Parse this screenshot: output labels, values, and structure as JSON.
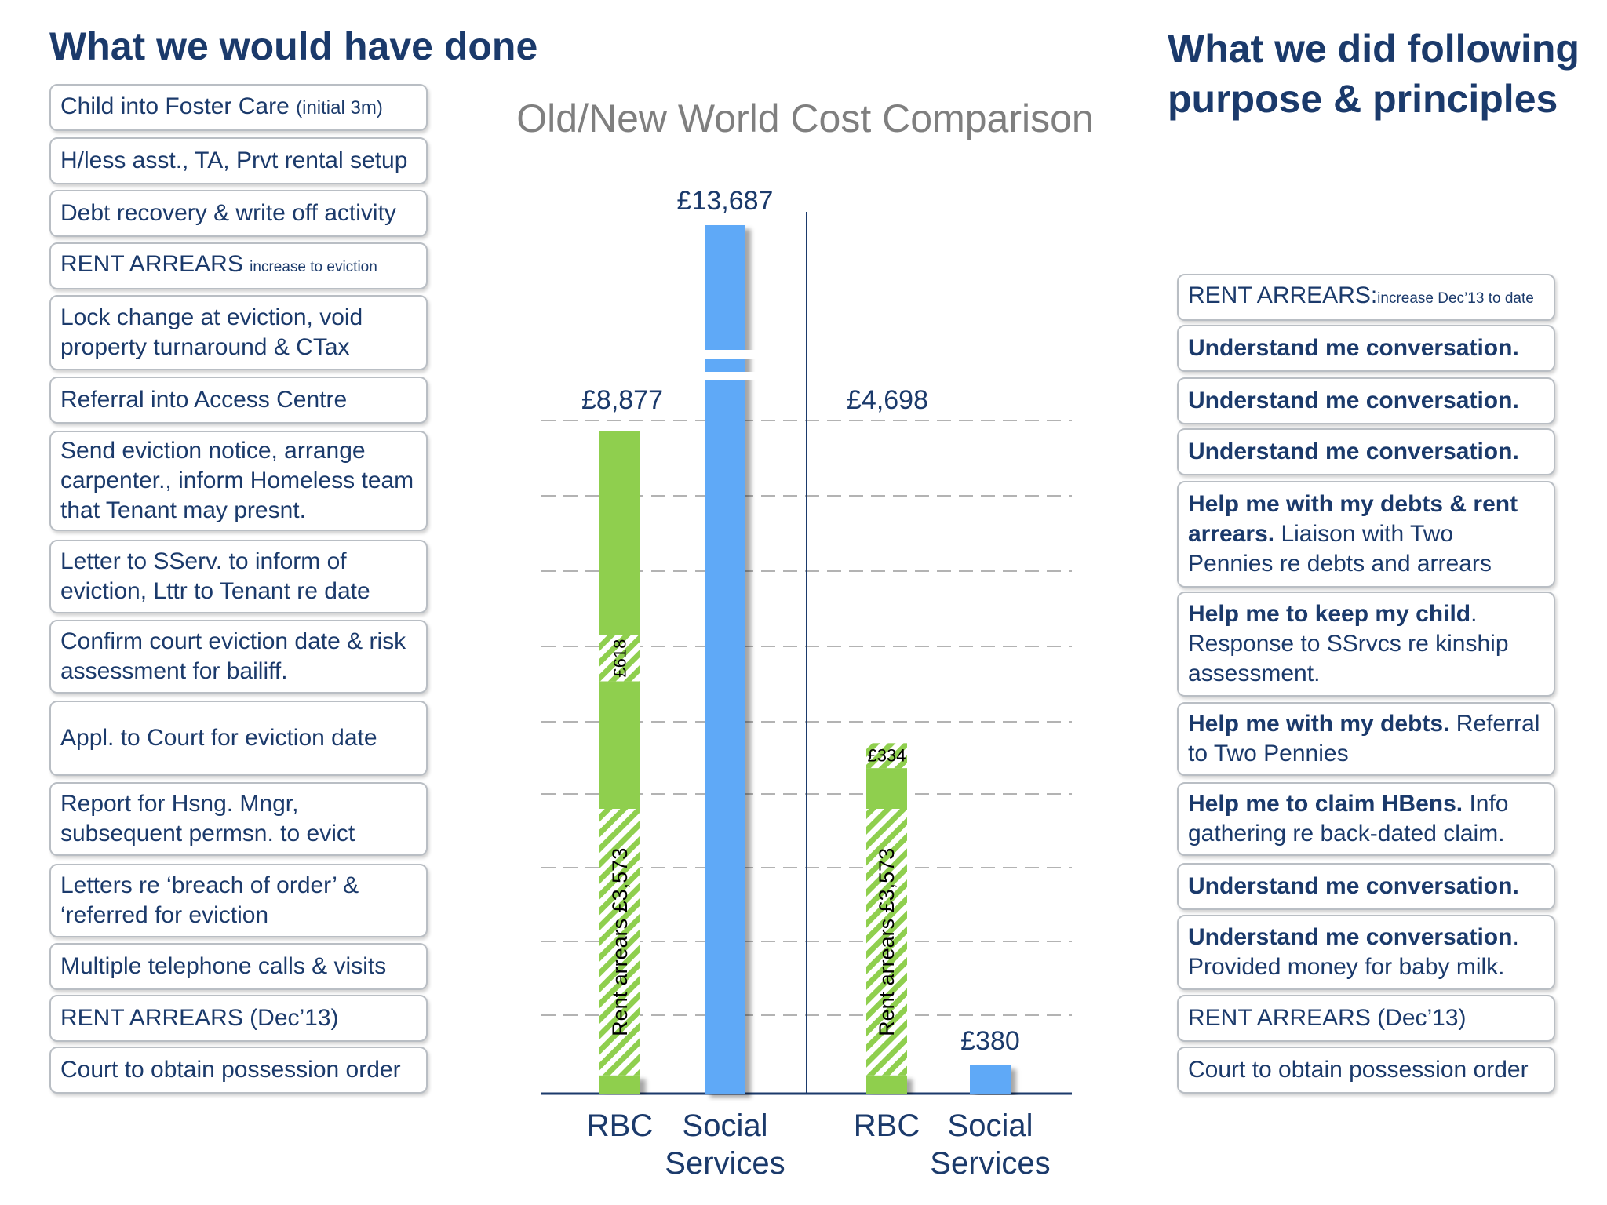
{
  "headings": {
    "left": "What we would have done",
    "right_line1": "What we did following",
    "right_line2": "purpose & principles"
  },
  "left_boxes": [
    {
      "parts": [
        {
          "text": "Child into Foster Care "
        },
        {
          "text": "(initial 3m)",
          "style": "small"
        }
      ]
    },
    {
      "parts": [
        {
          "text": "H/less asst., TA, Prvt rental setup"
        }
      ]
    },
    {
      "parts": [
        {
          "text": "Debt recovery & write off activity"
        }
      ]
    },
    {
      "parts": [
        {
          "text": "RENT ARREARS "
        },
        {
          "text": "increase to eviction",
          "style": "tiny"
        }
      ]
    },
    {
      "parts": [
        {
          "text": "Lock change at eviction, void property turnaround & CTax"
        }
      ]
    },
    {
      "parts": [
        {
          "text": "Referral into Access Centre"
        }
      ]
    },
    {
      "parts": [
        {
          "text": "Send eviction notice, arrange carpenter., inform Homeless team that Tenant may presnt."
        }
      ]
    },
    {
      "parts": [
        {
          "text": "Letter to SServ. to inform of eviction, Lttr to Tenant re date"
        }
      ]
    },
    {
      "parts": [
        {
          "text": "Confirm court eviction date & risk assessment for bailiff."
        }
      ]
    },
    {
      "parts": [
        {
          "text": "Appl. to Court for eviction date"
        }
      ]
    },
    {
      "parts": [
        {
          "text": "Report for Hsng. Mngr, subsequent permsn. to evict"
        }
      ]
    },
    {
      "parts": [
        {
          "text": "Letters re ‘breach of order’ & ‘referred for eviction"
        }
      ]
    },
    {
      "parts": [
        {
          "text": "Multiple telephone calls & visits"
        }
      ]
    },
    {
      "parts": [
        {
          "text": "RENT ARREARS (Dec’13)"
        }
      ]
    },
    {
      "parts": [
        {
          "text": "Court to obtain possession order"
        }
      ]
    }
  ],
  "right_boxes": [
    {
      "parts": [
        {
          "text": "RENT ARREARS:"
        },
        {
          "text": "increase Dec’13 to date",
          "style": "tiny"
        }
      ]
    },
    {
      "parts": [
        {
          "text": "Understand me conversation.",
          "style": "bold"
        }
      ]
    },
    {
      "parts": [
        {
          "text": "Understand me conversation.",
          "style": "bold"
        }
      ]
    },
    {
      "parts": [
        {
          "text": "Understand me conversation.",
          "style": "bold"
        }
      ]
    },
    {
      "parts": [
        {
          "text": "Help me with my debts & rent arrears.",
          "style": "bold"
        },
        {
          "text": " Liaison with Two Pennies re debts and arrears"
        }
      ]
    },
    {
      "parts": [
        {
          "text": "Help me to keep my child",
          "style": "bold"
        },
        {
          "text": ". Response to SSrvcs re kinship assessment."
        }
      ]
    },
    {
      "parts": [
        {
          "text": "Help me with my debts.",
          "style": "bold"
        },
        {
          "text": " Referral to Two Pennies"
        }
      ]
    },
    {
      "parts": [
        {
          "text": "Help me to claim HBens.",
          "style": "bold"
        },
        {
          "text": " Info gathering re back-dated claim."
        }
      ]
    },
    {
      "parts": [
        {
          "text": "Understand me conversation.",
          "style": "bold"
        }
      ]
    },
    {
      "parts": [
        {
          "text": "Understand me conversation",
          "style": "bold"
        },
        {
          "text": ". Provided money for baby milk."
        }
      ]
    },
    {
      "parts": [
        {
          "text": "RENT ARREARS (Dec’13)"
        }
      ]
    },
    {
      "parts": [
        {
          "text": "Court to obtain possession order"
        }
      ]
    }
  ],
  "chart_data": {
    "type": "bar",
    "title": "Old/New World Cost Comparison",
    "unit": "£",
    "axis_break": true,
    "groups": [
      {
        "name": "What we would have done",
        "bars": [
          {
            "category": "RBC",
            "total": 8877,
            "total_label": "£8,877",
            "segments": [
              {
                "name": "other",
                "value": 245,
                "pattern": "solid"
              },
              {
                "name": "Rent arrears",
                "value": 3573,
                "pattern": "hatched",
                "label": "Rent arrears £3,573"
              },
              {
                "name": "other",
                "value": 1710,
                "pattern": "solid"
              },
              {
                "name": "rent arrears increase",
                "value": 618,
                "pattern": "hatched",
                "label": "£618"
              },
              {
                "name": "other",
                "value": 2731,
                "pattern": "solid"
              }
            ]
          },
          {
            "category": "Social Services",
            "total": 13687,
            "total_label": "£13,687",
            "segments": [
              {
                "name": "Social Services",
                "value": 13687,
                "pattern": "solid"
              }
            ]
          }
        ]
      },
      {
        "name": "What we did following purpose & principles",
        "bars": [
          {
            "category": "RBC",
            "total": 4698,
            "total_label": "£4,698",
            "segments": [
              {
                "name": "other",
                "value": 245,
                "pattern": "solid"
              },
              {
                "name": "Rent arrears",
                "value": 3573,
                "pattern": "hatched",
                "label": "Rent arrears £3,573"
              },
              {
                "name": "other",
                "value": 546,
                "pattern": "solid"
              },
              {
                "name": "rent arrears increase",
                "value": 334,
                "pattern": "hatched",
                "label": "£334"
              }
            ]
          },
          {
            "category": "Social Services",
            "total": 380,
            "total_label": "£380",
            "segments": [
              {
                "name": "Social Services",
                "value": 380,
                "pattern": "solid"
              }
            ]
          }
        ]
      }
    ],
    "categories": [
      "RBC",
      "Social Services",
      "RBC",
      "Social Services"
    ],
    "category_lines": [
      [
        "RBC"
      ],
      [
        "Social",
        "Services"
      ],
      [
        "RBC"
      ],
      [
        "Social",
        "Services"
      ]
    ],
    "colors": {
      "rbc": "#8fcf4e",
      "rbc_hatch_bg": "#ffffff",
      "social": "#5ea9f7",
      "axis": "#1b3a6b",
      "grid": "#b3b3b3"
    },
    "grid": true
  }
}
